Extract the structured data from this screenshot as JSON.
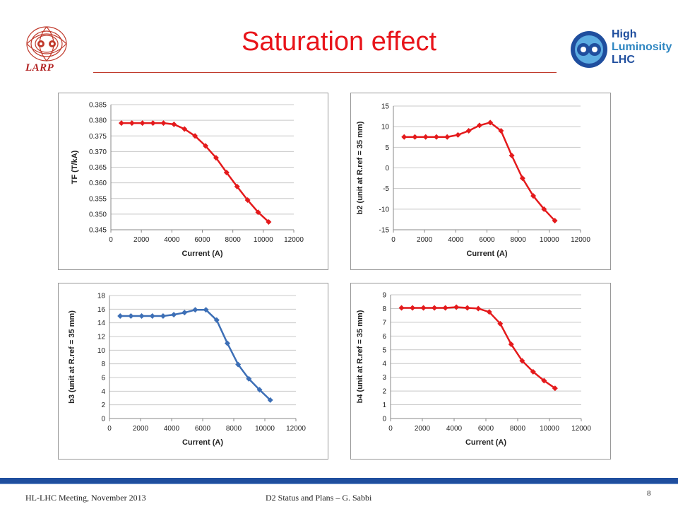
{
  "slide": {
    "title": "Saturation effect",
    "logo_left_text": "LARP",
    "logo_right_lines": [
      "High",
      "Luminosity",
      "LHC"
    ],
    "footer_left": "HL-LHC Meeting, November 2013",
    "footer_mid": "D2 Status and Plans – G. Sabbi",
    "page_number": "8"
  },
  "colors": {
    "title": "#e8141a",
    "red_series": "#e41a1c",
    "blue_series": "#3d6fb6",
    "footer_bar": "#1f4e9e"
  },
  "chart_data": [
    {
      "type": "line",
      "xlabel": "Current (A)",
      "ylabel": "TF (T/kA)",
      "xlim": [
        0,
        12000
      ],
      "ylim": [
        0.345,
        0.385
      ],
      "xticks": [
        "0",
        "2000",
        "4000",
        "6000",
        "8000",
        "10000",
        "12000"
      ],
      "yticks": [
        "0.345",
        "0.350",
        "0.355",
        "0.360",
        "0.365",
        "0.370",
        "0.375",
        "0.380",
        "0.385"
      ],
      "grid": true,
      "color": "#e41a1c",
      "marker": "diamond",
      "x": [
        690,
        1380,
        2070,
        2760,
        3450,
        4140,
        4830,
        5520,
        6210,
        6900,
        7590,
        8280,
        8970,
        9660,
        10350
      ],
      "y": [
        0.3791,
        0.3791,
        0.3791,
        0.3791,
        0.3791,
        0.3787,
        0.3772,
        0.375,
        0.3718,
        0.368,
        0.3633,
        0.3588,
        0.3545,
        0.3506,
        0.3475
      ]
    },
    {
      "type": "line",
      "xlabel": "Current (A)",
      "ylabel": "b2 (unit at R.ref = 35 mm)",
      "xlim": [
        0,
        12000
      ],
      "ylim": [
        -15,
        15
      ],
      "xticks": [
        "0",
        "2000",
        "4000",
        "6000",
        "8000",
        "10000",
        "12000"
      ],
      "yticks": [
        "-15",
        "-10",
        "-5",
        "0",
        "5",
        "10",
        "15"
      ],
      "grid": true,
      "color": "#e41a1c",
      "marker": "diamond",
      "x": [
        690,
        1380,
        2070,
        2760,
        3450,
        4140,
        4830,
        5520,
        6210,
        6900,
        7590,
        8280,
        8970,
        9660,
        10350
      ],
      "y": [
        7.5,
        7.5,
        7.5,
        7.5,
        7.5,
        8.0,
        9.0,
        10.3,
        11.0,
        9.0,
        3.0,
        -2.5,
        -6.8,
        -10.0,
        -12.8
      ]
    },
    {
      "type": "line",
      "xlabel": "Current (A)",
      "ylabel": "b3 (unit at R.ref = 35 mm)",
      "xlim": [
        0,
        12000
      ],
      "ylim": [
        0,
        18
      ],
      "xticks": [
        "0",
        "2000",
        "4000",
        "6000",
        "8000",
        "10000",
        "12000"
      ],
      "yticks": [
        "0",
        "2",
        "4",
        "6",
        "8",
        "10",
        "12",
        "14",
        "16",
        "18"
      ],
      "grid": true,
      "color": "#3d6fb6",
      "marker": "diamond",
      "x": [
        690,
        1380,
        2070,
        2760,
        3450,
        4140,
        4830,
        5520,
        6210,
        6900,
        7590,
        8280,
        8970,
        9660,
        10350
      ],
      "y": [
        15.0,
        15.0,
        15.0,
        15.0,
        15.0,
        15.2,
        15.5,
        15.9,
        15.9,
        14.4,
        11.0,
        7.9,
        5.8,
        4.2,
        2.7
      ]
    },
    {
      "type": "line",
      "xlabel": "Current (A)",
      "ylabel": "b4 (unit at R.ref = 35 mm)",
      "xlim": [
        0,
        12000
      ],
      "ylim": [
        0,
        9
      ],
      "xticks": [
        "0",
        "2000",
        "4000",
        "6000",
        "8000",
        "10000",
        "12000"
      ],
      "yticks": [
        "0",
        "1",
        "2",
        "3",
        "4",
        "5",
        "6",
        "7",
        "8",
        "9"
      ],
      "grid": true,
      "color": "#e41a1c",
      "marker": "diamond",
      "x": [
        690,
        1380,
        2070,
        2760,
        3450,
        4140,
        4830,
        5520,
        6210,
        6900,
        7590,
        8280,
        8970,
        9660,
        10350
      ],
      "y": [
        8.05,
        8.05,
        8.05,
        8.05,
        8.05,
        8.1,
        8.05,
        8.0,
        7.75,
        6.9,
        5.4,
        4.2,
        3.4,
        2.75,
        2.2
      ]
    }
  ]
}
